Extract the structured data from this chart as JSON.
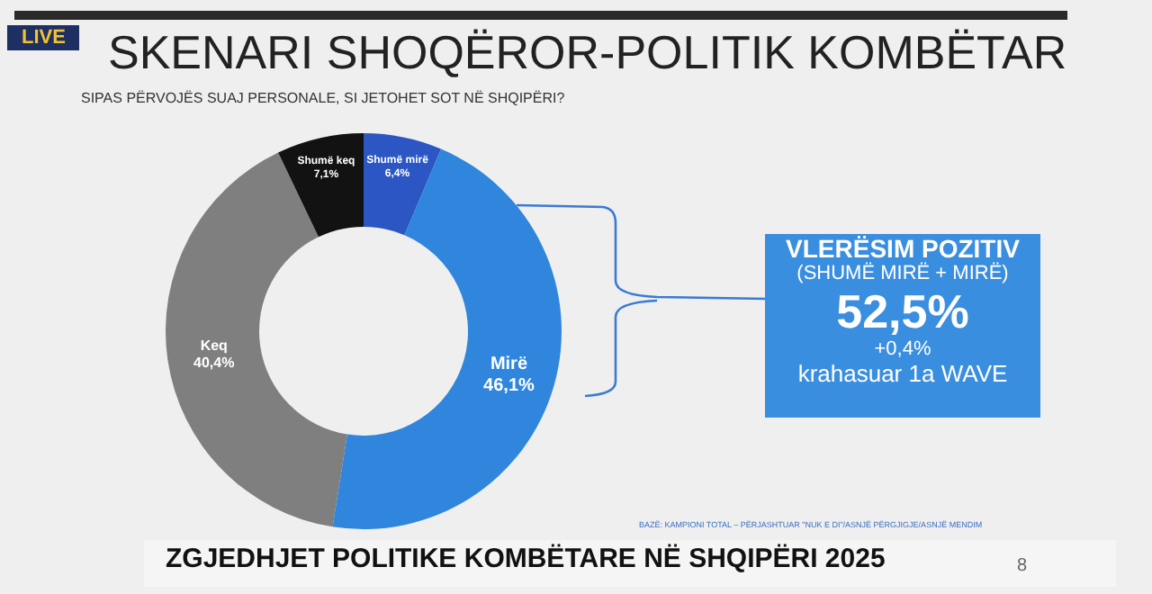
{
  "chart_data": {
    "type": "donut",
    "title": "SKENARI SHOQËROR-POLITIK KOMBËTAR",
    "subtitle": "SIPAS PËRVOJËS SUAJ PERSONALE, SI JETOHET SOT NË SHQIPËRI?",
    "categories": [
      "Shumë mirë",
      "Mirë",
      "Keq",
      "Shumë keq"
    ],
    "values": [
      6.4,
      46.1,
      40.4,
      7.1
    ],
    "colors": [
      "#2b56c4",
      "#2f86dc",
      "#7f7f7f",
      "#121212"
    ],
    "value_labels": [
      "6,4%",
      "46,1%",
      "40,4%",
      "7,1%"
    ],
    "legend": false,
    "annotations": [
      "VLERËSIM POZITIV",
      "(SHUMË MIRË + MIRË)",
      "52,5%",
      "+0,4%",
      "krahasuar 1a WAVE",
      "BAZË: KAMPIONI TOTAL – PËRJASHTUAR \"NUK E DI\"/ASNJË PËRGJIGJE/ASNJË MENDIM",
      "LIVE",
      "ZGJEDHJET POLITIKE KOMBËTARE NË SHQIPËRI 2025",
      "8"
    ]
  }
}
